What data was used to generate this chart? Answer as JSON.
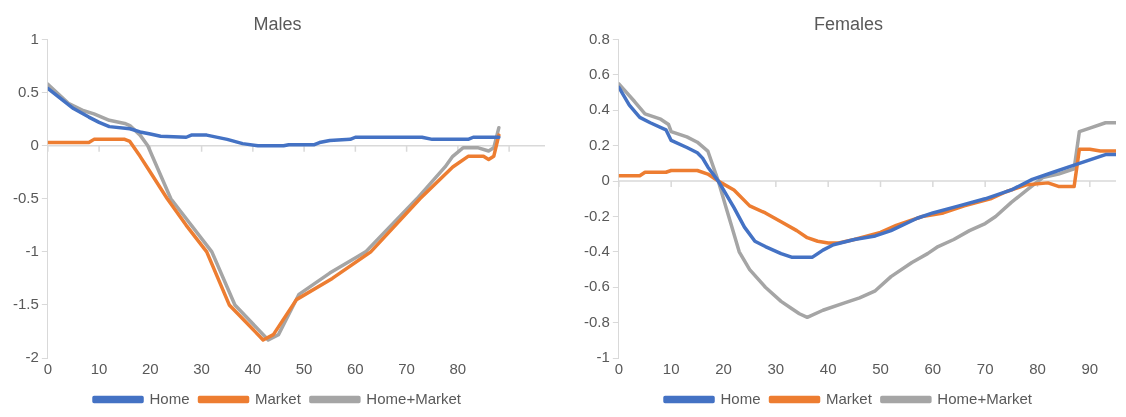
{
  "chart_data": [
    {
      "type": "line",
      "title": "Males",
      "xlim": [
        0,
        97
      ],
      "xticks": [
        0,
        10,
        20,
        30,
        40,
        50,
        60,
        70,
        80,
        {
          "value": 90,
          "label": null
        }
      ],
      "ylim": [
        -2,
        1
      ],
      "yticks": [
        -2,
        -1.5,
        -1,
        -0.5,
        0,
        0.5,
        1
      ],
      "legend": "bottom",
      "marker": "none",
      "line_style": "solid",
      "series": [
        {
          "name": "Home",
          "color": "#4472c4",
          "x": [
            0,
            5,
            8,
            10,
            12,
            16,
            18,
            20,
            22,
            27,
            28,
            31,
            35,
            38,
            41,
            46,
            47,
            52,
            53,
            55,
            59,
            60,
            73,
            75,
            82,
            83,
            88
          ],
          "values": [
            0.54,
            0.35,
            0.27,
            0.22,
            0.18,
            0.16,
            0.13,
            0.11,
            0.09,
            0.08,
            0.1,
            0.1,
            0.06,
            0.02,
            0,
            0,
            0.01,
            0.01,
            0.03,
            0.05,
            0.06,
            0.08,
            0.08,
            0.06,
            0.06,
            0.08,
            0.08
          ]
        },
        {
          "name": "Market",
          "color": "#ed7d31",
          "x": [
            0,
            8,
            9,
            15,
            16,
            18,
            20,
            23.3,
            27,
            31,
            35.4,
            42,
            44,
            48.5,
            55.5,
            63,
            72.6,
            79,
            82,
            85,
            86,
            87,
            88
          ],
          "values": [
            0.03,
            0.03,
            0.06,
            0.06,
            0.04,
            -0.1,
            -0.25,
            -0.5,
            -0.75,
            -1,
            -1.5,
            -1.83,
            -1.78,
            -1.45,
            -1.25,
            -1,
            -0.5,
            -0.2,
            -0.1,
            -0.1,
            -0.13,
            -0.1,
            0.1
          ]
        },
        {
          "name": "Home+Market",
          "color": "#a5a5a5",
          "x": [
            0,
            4,
            7,
            9,
            12,
            15,
            16,
            18,
            19.5,
            24,
            32,
            36.5,
            43,
            45,
            49,
            55,
            62,
            72,
            77.5,
            79,
            81,
            84,
            86,
            87,
            88
          ],
          "values": [
            0.58,
            0.4,
            0.33,
            0.3,
            0.24,
            0.21,
            0.19,
            0.1,
            0,
            -0.5,
            -1,
            -1.5,
            -1.83,
            -1.78,
            -1.4,
            -1.2,
            -1,
            -0.5,
            -0.2,
            -0.1,
            -0.02,
            -0.02,
            -0.05,
            -0.02,
            0.17
          ]
        }
      ]
    },
    {
      "type": "line",
      "title": "Females",
      "xlim": [
        0,
        95
      ],
      "xticks": [
        0,
        10,
        20,
        30,
        40,
        50,
        60,
        70,
        80,
        90
      ],
      "ylim": [
        -1,
        0.8
      ],
      "yticks": [
        -1,
        -0.8,
        -0.6,
        -0.4,
        -0.2,
        0,
        0.2,
        0.4,
        0.6,
        0.8
      ],
      "legend": "bottom",
      "marker": "none",
      "line_style": "solid",
      "series": [
        {
          "name": "Home",
          "color": "#4472c4",
          "x": [
            0,
            2,
            4,
            6,
            9,
            10,
            13,
            15,
            16,
            17,
            19,
            20,
            22,
            24,
            26,
            28,
            31,
            33,
            37,
            39,
            41,
            45,
            49,
            52,
            57,
            60,
            65,
            70,
            75,
            79,
            83,
            86,
            89,
            93,
            95
          ],
          "values": [
            0.53,
            0.43,
            0.36,
            0.33,
            0.29,
            0.23,
            0.19,
            0.16,
            0.13,
            0.08,
            0,
            -0.05,
            -0.15,
            -0.26,
            -0.34,
            -0.37,
            -0.41,
            -0.43,
            -0.43,
            -0.39,
            -0.36,
            -0.33,
            -0.31,
            -0.28,
            -0.21,
            -0.18,
            -0.14,
            -0.1,
            -0.05,
            0.01,
            0.05,
            0.08,
            0.11,
            0.15,
            0.15
          ]
        },
        {
          "name": "Market",
          "color": "#ed7d31",
          "x": [
            0,
            4,
            5,
            9,
            10,
            15,
            17,
            19,
            22,
            25,
            28,
            31,
            34,
            36,
            38,
            40,
            42,
            45,
            50,
            53,
            58,
            62,
            66,
            71,
            74,
            78,
            82,
            84,
            87,
            88,
            90,
            92,
            95
          ],
          "values": [
            0.03,
            0.03,
            0.05,
            0.05,
            0.06,
            0.06,
            0.04,
            0,
            -0.05,
            -0.14,
            -0.18,
            -0.23,
            -0.28,
            -0.32,
            -0.34,
            -0.35,
            -0.35,
            -0.33,
            -0.29,
            -0.25,
            -0.2,
            -0.18,
            -0.14,
            -0.1,
            -0.06,
            -0.02,
            -0.01,
            -0.03,
            -0.03,
            0.18,
            0.18,
            0.17,
            0.17
          ]
        },
        {
          "name": "Home+Market",
          "color": "#a5a5a5",
          "x": [
            0,
            3,
            5,
            8,
            9.5,
            10,
            13,
            15,
            17,
            19,
            20.5,
            21.5,
            23,
            25,
            28,
            31,
            33,
            34.5,
            36,
            39,
            43,
            46,
            49,
            52,
            56,
            59,
            61,
            64,
            67,
            70,
            72,
            75,
            78,
            81,
            84,
            87,
            88,
            90,
            93,
            95
          ],
          "values": [
            0.55,
            0.45,
            0.38,
            0.35,
            0.32,
            0.28,
            0.25,
            0.22,
            0.17,
            0,
            -0.15,
            -0.25,
            -0.4,
            -0.5,
            -0.6,
            -0.68,
            -0.72,
            -0.75,
            -0.77,
            -0.73,
            -0.69,
            -0.66,
            -0.62,
            -0.54,
            -0.46,
            -0.41,
            -0.37,
            -0.33,
            -0.28,
            -0.24,
            -0.2,
            -0.12,
            -0.05,
            0.02,
            0.04,
            0.07,
            0.28,
            0.3,
            0.33,
            0.33
          ]
        }
      ]
    }
  ]
}
